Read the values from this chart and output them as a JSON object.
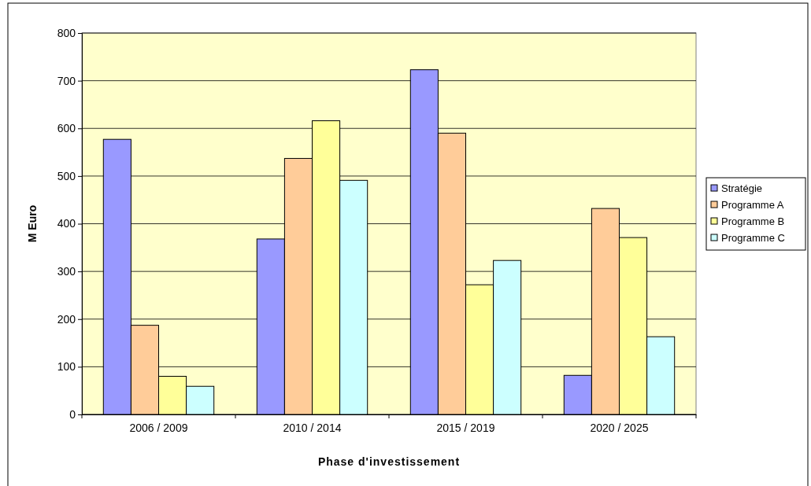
{
  "chart_data": {
    "type": "bar",
    "xlabel": "Phase d'investissement",
    "ylabel": "M Euro",
    "categories": [
      "2006 / 2009",
      "2010 / 2014",
      "2015 / 2019",
      "2020 / 2025"
    ],
    "series": [
      {
        "name": "Stratégie",
        "color": "#9999ff",
        "values": [
          577,
          368,
          723,
          82
        ]
      },
      {
        "name": "Programme A",
        "color": "#ffcc99",
        "values": [
          187,
          537,
          590,
          432
        ]
      },
      {
        "name": "Programme B",
        "color": "#ffff99",
        "values": [
          80,
          616,
          272,
          371
        ]
      },
      {
        "name": "Programme C",
        "color": "#ccffff",
        "values": [
          59,
          491,
          323,
          163
        ]
      }
    ],
    "ylim": [
      0,
      800
    ],
    "yticks": [
      0,
      100,
      200,
      300,
      400,
      500,
      600,
      700,
      800
    ],
    "grid": "y",
    "legend": "right"
  }
}
